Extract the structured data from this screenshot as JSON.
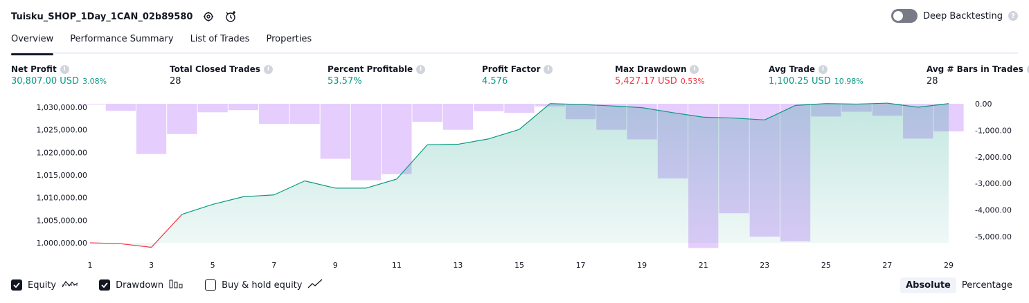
{
  "header": {
    "title": "Tuisku_SHOP_1Day_1CAN_02b89580",
    "deep_backtesting_label": "Deep Backtesting",
    "help_glyph": "?"
  },
  "tabs": [
    {
      "label": "Overview",
      "active": true
    },
    {
      "label": "Performance Summary",
      "active": false
    },
    {
      "label": "List of Trades",
      "active": false
    },
    {
      "label": "Properties",
      "active": false
    }
  ],
  "metrics": [
    {
      "label": "Net Profit",
      "value": "30,807.00 USD",
      "pct": "3.08%",
      "color": "#089981"
    },
    {
      "label": "Total Closed Trades",
      "value": "28",
      "pct": "",
      "color": "#131722"
    },
    {
      "label": "Percent Profitable",
      "value": "53.57%",
      "pct": "",
      "color": "#089981"
    },
    {
      "label": "Profit Factor",
      "value": "4.576",
      "pct": "",
      "color": "#089981"
    },
    {
      "label": "Max Drawdown",
      "value": "5,427.17 USD",
      "pct": "0.53%",
      "color": "#f23645"
    },
    {
      "label": "Avg Trade",
      "value": "1,100.25 USD",
      "pct": "10.98%",
      "color": "#089981"
    },
    {
      "label": "Avg # Bars in Trades",
      "value": "28",
      "pct": "",
      "color": "#131722"
    }
  ],
  "chart_data": {
    "type": "line",
    "x": [
      1,
      2,
      3,
      4,
      5,
      6,
      7,
      8,
      9,
      10,
      11,
      12,
      13,
      14,
      15,
      16,
      17,
      18,
      19,
      20,
      21,
      22,
      23,
      24,
      25,
      26,
      27,
      28,
      29
    ],
    "x_ticks": [
      "1",
      "3",
      "5",
      "7",
      "9",
      "11",
      "13",
      "15",
      "17",
      "19",
      "21",
      "23",
      "25",
      "27",
      "29"
    ],
    "series": [
      {
        "name": "Equity",
        "axis": "left",
        "color_up": "#089981",
        "color_down": "#f23645",
        "values": [
          1000000,
          999800,
          999000,
          1006300,
          1008500,
          1010200,
          1010600,
          1013700,
          1012100,
          1012100,
          1014100,
          1021700,
          1021800,
          1023000,
          1025100,
          1030800,
          1030600,
          1030300,
          1029900,
          1028800,
          1027800,
          1027600,
          1027200,
          1030400,
          1030800,
          1030700,
          1030900,
          1030000,
          1030800
        ]
      },
      {
        "name": "Drawdown",
        "type": "bar",
        "axis": "right",
        "color": "#e1c4fd",
        "values": [
          0,
          -260,
          -1890,
          -1140,
          -320,
          -240,
          -760,
          -760,
          -2070,
          -2880,
          -2650,
          -680,
          -980,
          -280,
          -340,
          -100,
          -580,
          -980,
          -1340,
          -2810,
          -5430,
          -4120,
          -5000,
          -5180,
          -480,
          -300,
          -450,
          -1310,
          -1040
        ]
      }
    ],
    "y_left": {
      "ticks": [
        "1,030,000.00",
        "1,025,000.00",
        "1,020,000.00",
        "1,015,000.00",
        "1,010,000.00",
        "1,005,000.00",
        "1,000,000.00"
      ],
      "tick_values": [
        1030000,
        1025000,
        1020000,
        1015000,
        1010000,
        1005000,
        1000000
      ],
      "range": [
        1000000,
        1030000
      ]
    },
    "y_right": {
      "ticks": [
        "0.00",
        "-1,000.00",
        "-2,000.00",
        "-3,000.00",
        "-4,000.00",
        "-5,000.00"
      ],
      "tick_values": [
        0,
        -1000,
        -2000,
        -3000,
        -4000,
        -5000
      ],
      "range": [
        -5000,
        0
      ]
    },
    "grid": false
  },
  "legend": [
    {
      "label": "Equity",
      "checked": true,
      "icon": "equity-line-icon"
    },
    {
      "label": "Drawdown",
      "checked": true,
      "icon": "drawdown-bars-icon"
    },
    {
      "label": "Buy & hold equity",
      "checked": false,
      "icon": "buy-hold-line-icon"
    }
  ],
  "scale_toggle": {
    "absolute": "Absolute",
    "percentage": "Percentage",
    "selected": "Absolute"
  }
}
